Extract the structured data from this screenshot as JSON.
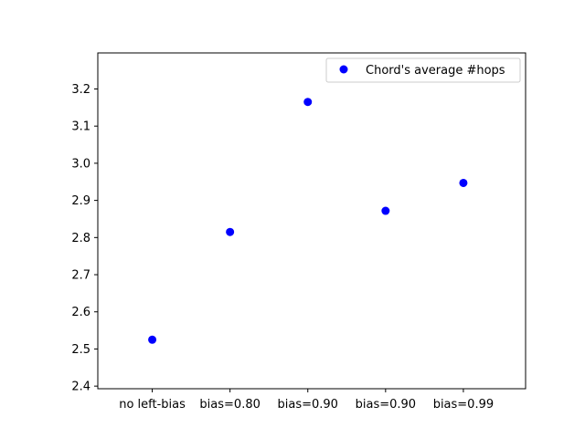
{
  "chart_data": {
    "type": "scatter",
    "categories": [
      "no left-bias",
      "bias=0.80",
      "bias=0.90",
      "bias=0.90",
      "bias=0.99"
    ],
    "series": [
      {
        "name": "Chord's average #hops",
        "color": "#0000ff",
        "marker": "circle",
        "values": [
          2.525,
          2.815,
          3.165,
          2.872,
          2.947
        ]
      }
    ],
    "yticks": [
      "2.4",
      "2.5",
      "2.6",
      "2.7",
      "2.8",
      "2.9",
      "3.0",
      "3.1",
      "3.2"
    ],
    "ylim": [
      2.393,
      3.297
    ],
    "xlim": [
      -0.7,
      4.8
    ],
    "grid": false,
    "legend_position": "top-right"
  }
}
